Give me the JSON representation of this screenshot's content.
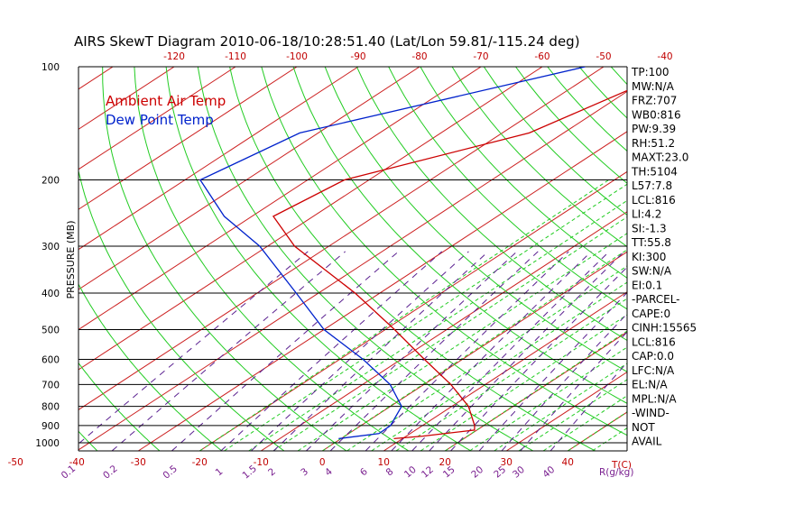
{
  "chart_data": {
    "type": "line",
    "title": "AIRS SkewT Diagram 2010-06-18/10:28:51.40 (Lat/Lon 59.81/-115.24 deg)",
    "ylabel": "PRESSURE (MB)",
    "y_scale": "log",
    "ylim": [
      1050,
      100
    ],
    "xlim": [
      -50,
      50
    ],
    "x_unit_label": "T(C)",
    "mixing_unit_label": "R(g/kg)",
    "pressure_ticks": [
      100,
      200,
      300,
      400,
      500,
      600,
      700,
      800,
      900,
      1000
    ],
    "top_temp_ticks": [
      -120,
      -110,
      -100,
      -90,
      -80,
      -70,
      -60,
      -50,
      -40
    ],
    "bottom_temp_ticks": [
      -50,
      -40,
      -30,
      -20,
      -10,
      0,
      10,
      20,
      30,
      40
    ],
    "mixing_ratio_ticks": [
      "0.1",
      "0.2",
      "0.5",
      "1",
      "1.5",
      "2",
      "3",
      "4",
      "6",
      "8",
      "10",
      "12",
      "15",
      "20",
      "25",
      "30",
      "40"
    ],
    "legend_placement": "top-left",
    "series": [
      {
        "name": "Ambient Air Temp",
        "color": "#cc0000",
        "points": [
          {
            "p": 100,
            "t": -37.2
          },
          {
            "p": 150,
            "t": -45.6
          },
          {
            "p": 200,
            "t": -64.0
          },
          {
            "p": 250,
            "t": -66.5
          },
          {
            "p": 300,
            "t": -55.6
          },
          {
            "p": 400,
            "t": -34.0
          },
          {
            "p": 500,
            "t": -18.5
          },
          {
            "p": 600,
            "t": -6.2
          },
          {
            "p": 700,
            "t": 4.4
          },
          {
            "p": 800,
            "t": 12.7
          },
          {
            "p": 900,
            "t": 18.5
          },
          {
            "p": 925,
            "t": 19.6
          },
          {
            "p": 960,
            "t": 12.7
          },
          {
            "p": 975,
            "t": 8.6
          }
        ]
      },
      {
        "name": "Dew Point Temp",
        "color": "#0022cc",
        "points": [
          {
            "p": 100,
            "t": -53.0
          },
          {
            "p": 150,
            "t": -83.0
          },
          {
            "p": 200,
            "t": -87.5
          },
          {
            "p": 250,
            "t": -74.5
          },
          {
            "p": 300,
            "t": -61.3
          },
          {
            "p": 400,
            "t": -43.6
          },
          {
            "p": 500,
            "t": -30.0
          },
          {
            "p": 600,
            "t": -16.2
          },
          {
            "p": 700,
            "t": -5.5
          },
          {
            "p": 800,
            "t": 1.8
          },
          {
            "p": 900,
            "t": 4.8
          },
          {
            "p": 945,
            "t": 4.9
          },
          {
            "p": 975,
            "t": -0.4
          }
        ]
      }
    ],
    "indices": [
      "TP:100",
      "MW:N/A",
      "FRZ:707",
      "WB0:816",
      "PW:9.39",
      "RH:51.2",
      "MAXT:23.0",
      "TH:5104",
      "L57:7.8",
      "LCL:816",
      "LI:4.2",
      "SI:-1.3",
      "TT:55.8",
      "KI:300",
      "SW:N/A",
      "EI:0.1",
      "-PARCEL-",
      "CAPE:0",
      "CINH:15565",
      "LCL:816",
      "CAP:0.0",
      "LFC:N/A",
      "EL:N/A",
      "MPL:N/A",
      "-WIND-",
      "NOT",
      "AVAIL"
    ],
    "grid": true,
    "colors": {
      "isotherm": "#cc2020",
      "dry_adiabat": "#22cc22",
      "moist_adiabat": "#22cc22",
      "mixing_ratio": "#5a2090",
      "isobar": "#000000",
      "temperature_label": "#cc0000",
      "mixing_label": "#7a2090"
    }
  }
}
